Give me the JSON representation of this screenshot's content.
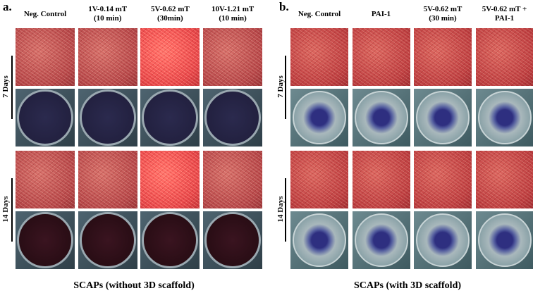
{
  "panels": [
    {
      "label": "a.",
      "columns": [
        [
          "Neg. Control"
        ],
        [
          "1V-0.14 mT",
          "(10 min)"
        ],
        [
          "5V-0.62 mT",
          "(30min)"
        ],
        [
          "10V-1.21 mT",
          "(10 min)"
        ]
      ],
      "rows": [
        "7 Days",
        "14 Days"
      ],
      "caption": "SCAPs (without 3D scaffold)"
    },
    {
      "label": "b.",
      "columns": [
        [
          "Neg. Control"
        ],
        [
          "PAI-1"
        ],
        [
          "5V-0.62 mT",
          "(30 min)"
        ],
        [
          "5V-0.62 mT +",
          "PAI-1"
        ]
      ],
      "rows": [
        "7 Days",
        "14 Days"
      ],
      "caption": "SCAPs (with 3D scaffold)"
    }
  ]
}
